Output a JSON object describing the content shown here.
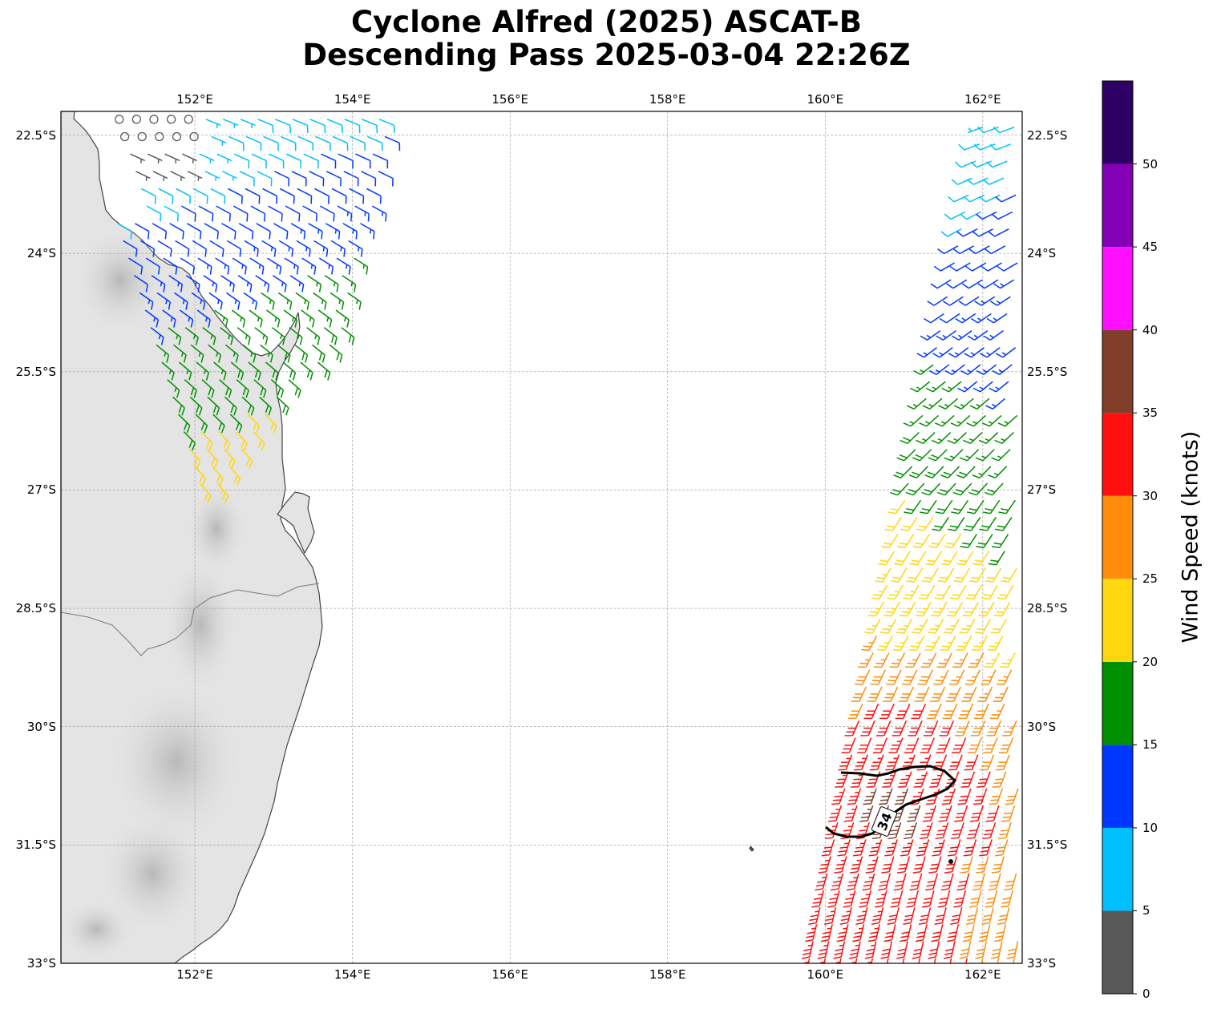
{
  "title": {
    "line1": "Cyclone Alfred (2025) ASCAT-B",
    "line2": "Descending Pass 2025-03-04 22:26Z"
  },
  "map": {
    "lon_range": [
      150.3,
      162.5
    ],
    "lat_range": [
      -33.0,
      -22.2
    ],
    "lon_ticks": [
      {
        "value": 152,
        "label": "152°E"
      },
      {
        "value": 154,
        "label": "154°E"
      },
      {
        "value": 156,
        "label": "156°E"
      },
      {
        "value": 158,
        "label": "158°E"
      },
      {
        "value": 160,
        "label": "160°E"
      },
      {
        "value": 162,
        "label": "162°E"
      }
    ],
    "lat_ticks": [
      {
        "value": -22.5,
        "label": "22.5°S"
      },
      {
        "value": -24,
        "label": "24°S"
      },
      {
        "value": -25.5,
        "label": "25.5°S"
      },
      {
        "value": -27,
        "label": "27°S"
      },
      {
        "value": -28.5,
        "label": "28.5°S"
      },
      {
        "value": -30,
        "label": "30°S"
      },
      {
        "value": -31.5,
        "label": "31.5°S"
      },
      {
        "value": -33,
        "label": "33°S"
      }
    ],
    "gridlines": true,
    "contour_label": "34",
    "contour_color": "#000000",
    "land_shading": "#d9d9d9",
    "coast_color": "#444444"
  },
  "colorbar": {
    "label": "Wind Speed (knots)",
    "ticks": [
      "0",
      "5",
      "10",
      "15",
      "20",
      "25",
      "30",
      "35",
      "40",
      "45",
      "50"
    ],
    "bins": [
      {
        "min": 0,
        "max": 5,
        "color": "#595959"
      },
      {
        "min": 5,
        "max": 10,
        "color": "#00bfff"
      },
      {
        "min": 10,
        "max": 15,
        "color": "#0037ff"
      },
      {
        "min": 15,
        "max": 20,
        "color": "#008f00"
      },
      {
        "min": 20,
        "max": 25,
        "color": "#ffd70f"
      },
      {
        "min": 25,
        "max": 30,
        "color": "#ff8c0a"
      },
      {
        "min": 30,
        "max": 35,
        "color": "#ff0f0f"
      },
      {
        "min": 35,
        "max": 40,
        "color": "#803e2b"
      },
      {
        "min": 40,
        "max": 45,
        "color": "#ff0fff"
      },
      {
        "min": 45,
        "max": 50,
        "color": "#8400b5"
      },
      {
        "min": 50,
        "max": 55,
        "color": "#2e0066"
      }
    ]
  }
}
